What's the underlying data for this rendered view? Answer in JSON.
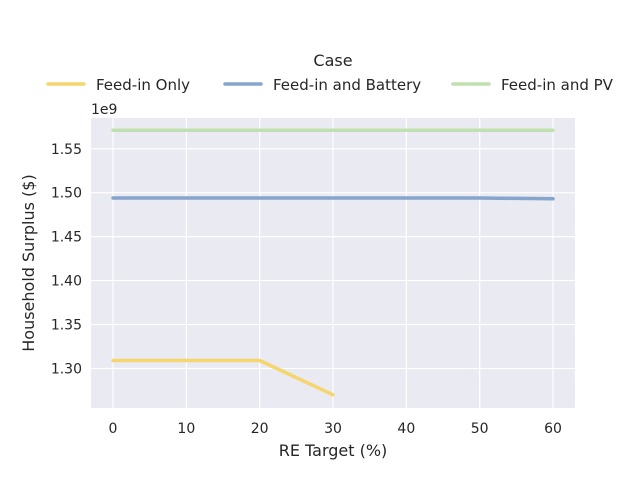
{
  "chart_data": {
    "type": "line",
    "title": "",
    "xlabel": "RE Target (%)",
    "ylabel": "Household Surplus ($)",
    "y_offset_label": "1e9",
    "xlim": [
      -3,
      63
    ],
    "ylim": [
      1.255,
      1.585
    ],
    "xticks": [
      0,
      10,
      20,
      30,
      40,
      50,
      60
    ],
    "xtick_labels": [
      "0",
      "10",
      "20",
      "30",
      "40",
      "50",
      "60"
    ],
    "yticks": [
      1.3,
      1.35,
      1.4,
      1.45,
      1.5,
      1.55
    ],
    "ytick_labels": [
      "1.30",
      "1.35",
      "1.40",
      "1.45",
      "1.50",
      "1.55"
    ],
    "grid": true,
    "legend": {
      "title": "Case",
      "placement": "top-center",
      "entries": [
        "Feed-in Only",
        "Feed-in and Battery",
        "Feed-in and PV"
      ]
    },
    "series": [
      {
        "name": "Feed-in Only",
        "color": "#f5d56e",
        "x": [
          0,
          10,
          20,
          30
        ],
        "y": [
          1.309,
          1.309,
          1.309,
          1.27
        ]
      },
      {
        "name": "Feed-in and Battery",
        "color": "#86a5cc",
        "x": [
          0,
          10,
          20,
          30,
          40,
          50,
          60
        ],
        "y": [
          1.494,
          1.494,
          1.494,
          1.494,
          1.494,
          1.494,
          1.493
        ]
      },
      {
        "name": "Feed-in and PV",
        "color": "#c0e0b0",
        "x": [
          0,
          10,
          20,
          30,
          40,
          50,
          60
        ],
        "y": [
          1.571,
          1.571,
          1.571,
          1.571,
          1.571,
          1.571,
          1.571
        ]
      }
    ]
  }
}
